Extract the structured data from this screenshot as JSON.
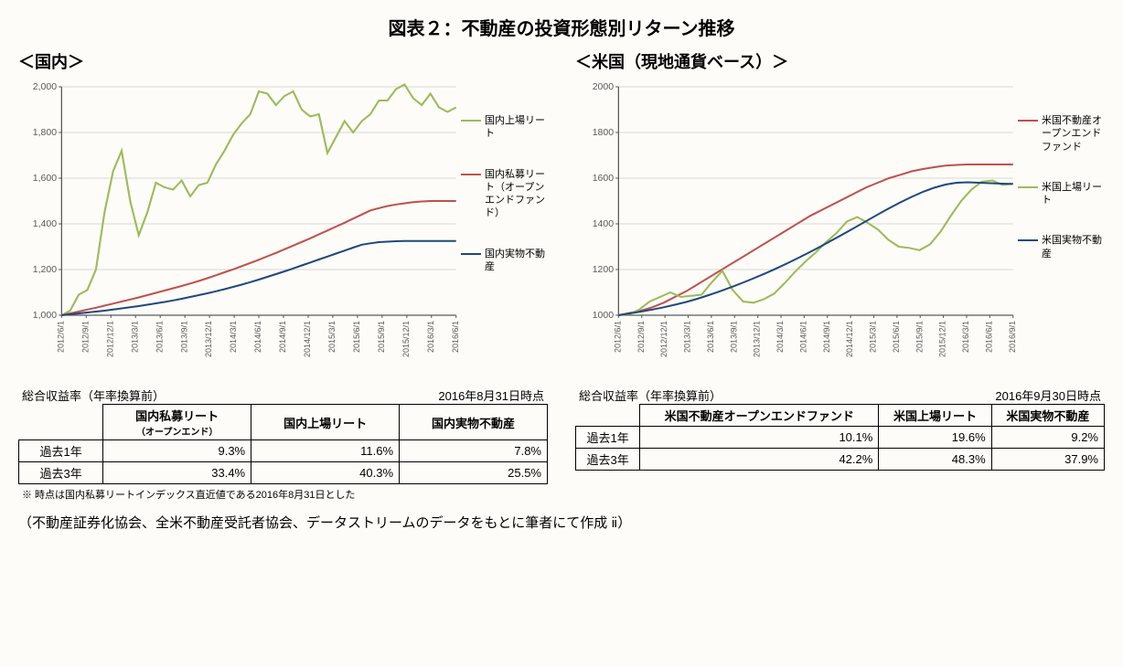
{
  "title": "図表２：不動産の投資形態別リターン推移",
  "footer": "（不動産証券化協会、全米不動産受託者協会、データストリームのデータをもとに筆者にて作成 ⅱ）",
  "leftPanel": {
    "title": "＜国内＞",
    "chart": {
      "type": "line",
      "background": "#fdfcf8",
      "gridColor": "#d9d9d9",
      "axisColor": "#595959",
      "yAxis": {
        "min": 1000,
        "max": 2000,
        "step": 200,
        "labelFmt": "comma"
      },
      "xLabels": [
        "2012/6/1",
        "2012/9/1",
        "2012/12/1",
        "2013/3/1",
        "2013/6/1",
        "2013/9/1",
        "2013/12/1",
        "2014/3/1",
        "2014/6/1",
        "2014/9/1",
        "2014/12/1",
        "2015/3/1",
        "2015/6/1",
        "2015/9/1",
        "2015/12/1",
        "2016/3/1",
        "2016/6/1"
      ],
      "series": [
        {
          "name": "国内上場リート",
          "color": "#9bbb59",
          "width": 2,
          "data": [
            1000,
            1020,
            1090,
            1110,
            1200,
            1450,
            1630,
            1720,
            1500,
            1350,
            1450,
            1580,
            1560,
            1550,
            1590,
            1520,
            1570,
            1580,
            1660,
            1720,
            1790,
            1840,
            1880,
            1980,
            1970,
            1920,
            1960,
            1980,
            1900,
            1870,
            1880,
            1710,
            1780,
            1850,
            1800,
            1850,
            1880,
            1940,
            1940,
            1990,
            2010,
            1950,
            1920,
            1970,
            1910,
            1890,
            1910
          ]
        },
        {
          "name": "国内私募リート（オープンエンドファンド）",
          "color": "#c0504d",
          "width": 2,
          "data": [
            1000,
            1008,
            1016,
            1025,
            1033,
            1042,
            1051,
            1060,
            1069,
            1078,
            1088,
            1098,
            1108,
            1118,
            1128,
            1139,
            1150,
            1162,
            1175,
            1188,
            1201,
            1215,
            1229,
            1243,
            1258,
            1273,
            1289,
            1305,
            1321,
            1337,
            1354,
            1371,
            1388,
            1405,
            1423,
            1441,
            1459,
            1469,
            1478,
            1485,
            1490,
            1495,
            1498,
            1500,
            1500,
            1500,
            1500
          ]
        },
        {
          "name": "国内実物不動産",
          "color": "#1f497d",
          "width": 2,
          "data": [
            1000,
            1004,
            1008,
            1012,
            1016,
            1020,
            1025,
            1030,
            1035,
            1040,
            1046,
            1052,
            1058,
            1065,
            1072,
            1080,
            1088,
            1096,
            1105,
            1114,
            1124,
            1134,
            1145,
            1156,
            1168,
            1180,
            1192,
            1205,
            1218,
            1231,
            1244,
            1257,
            1270,
            1283,
            1296,
            1309,
            1315,
            1320,
            1322,
            1324,
            1325,
            1325,
            1325,
            1325,
            1325,
            1325,
            1325
          ]
        }
      ],
      "legendOrder": [
        0,
        1,
        2
      ]
    },
    "table": {
      "headerLeft": "総合収益率（年率換算前）",
      "headerRight": "2016年8月31日時点",
      "columns": [
        "",
        "国内私募リート（オープンエンド）",
        "国内上場リート",
        "国内実物不動産"
      ],
      "rows": [
        [
          "過去1年",
          "9.3%",
          "11.6%",
          "7.8%"
        ],
        [
          "過去3年",
          "33.4%",
          "40.3%",
          "25.5%"
        ]
      ],
      "note": "※ 時点は国内私募リートインデックス直近値である2016年8月31日とした"
    }
  },
  "rightPanel": {
    "title": "＜米国（現地通貨ベース）＞",
    "chart": {
      "type": "line",
      "background": "#fdfcf8",
      "gridColor": "#d9d9d9",
      "axisColor": "#595959",
      "yAxis": {
        "min": 1000,
        "max": 2000,
        "step": 200,
        "labelFmt": "plain"
      },
      "xLabels": [
        "2012/6/1",
        "2012/9/1",
        "2012/12/1",
        "2013/3/1",
        "2013/6/1",
        "2013/9/1",
        "2013/12/1",
        "2014/3/1",
        "2014/6/1",
        "2014/9/1",
        "2014/12/1",
        "2015/3/1",
        "2015/6/1",
        "2015/9/1",
        "2015/12/1",
        "2016/3/1",
        "2016/6/1",
        "2016/9/1"
      ],
      "series": [
        {
          "name": "米国不動産オープンエンドファンド",
          "color": "#c0504d",
          "width": 2,
          "data": [
            1000,
            1010,
            1020,
            1035,
            1055,
            1080,
            1105,
            1135,
            1165,
            1195,
            1225,
            1255,
            1285,
            1315,
            1345,
            1375,
            1405,
            1435,
            1460,
            1485,
            1510,
            1535,
            1560,
            1580,
            1600,
            1615,
            1630,
            1640,
            1648,
            1655,
            1658,
            1660,
            1660,
            1660,
            1660,
            1660
          ]
        },
        {
          "name": "米国上場リート",
          "color": "#9bbb59",
          "width": 2,
          "data": [
            1000,
            1005,
            1025,
            1060,
            1080,
            1100,
            1080,
            1085,
            1090,
            1145,
            1195,
            1110,
            1060,
            1055,
            1070,
            1095,
            1140,
            1190,
            1235,
            1275,
            1320,
            1360,
            1410,
            1430,
            1405,
            1375,
            1330,
            1300,
            1295,
            1285,
            1310,
            1365,
            1435,
            1500,
            1550,
            1585,
            1590,
            1570,
            1575
          ]
        },
        {
          "name": "米国実物不動産",
          "color": "#1f497d",
          "width": 2,
          "data": [
            1000,
            1008,
            1016,
            1025,
            1035,
            1046,
            1058,
            1072,
            1088,
            1105,
            1123,
            1142,
            1162,
            1183,
            1205,
            1228,
            1252,
            1277,
            1303,
            1330,
            1357,
            1385,
            1413,
            1441,
            1468,
            1494,
            1518,
            1540,
            1558,
            1572,
            1580,
            1582,
            1580,
            1578,
            1576,
            1575
          ]
        }
      ],
      "legendOrder": [
        0,
        1,
        2
      ]
    },
    "table": {
      "headerLeft": "総合収益率（年率換算前）",
      "headerRight": "2016年9月30日時点",
      "columns": [
        "",
        "米国不動産オープンエンドファンド",
        "米国上場リート",
        "米国実物不動産"
      ],
      "rows": [
        [
          "過去1年",
          "10.1%",
          "19.6%",
          "9.2%"
        ],
        [
          "過去3年",
          "42.2%",
          "48.3%",
          "37.9%"
        ]
      ],
      "note": ""
    }
  }
}
